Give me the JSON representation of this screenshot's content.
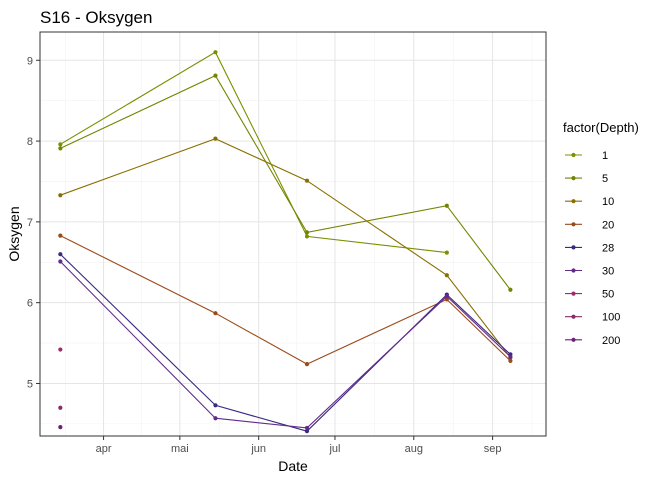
{
  "chart_data": {
    "type": "line",
    "title": "S16  -  Oksygen",
    "xlabel": "Date",
    "ylabel": "Oksygen",
    "x_tick_labels": [
      "apr",
      "mai",
      "jun",
      "jul",
      "aug",
      "sep"
    ],
    "x_ticks": [
      "2023-04-01",
      "2023-05-01",
      "2023-06-01",
      "2023-07-01",
      "2023-08-01",
      "2023-09-01"
    ],
    "xlim": [
      "2023-03-07",
      "2023-09-22"
    ],
    "y_ticks": [
      5,
      6,
      7,
      8,
      9
    ],
    "ylim": [
      4.35,
      9.35
    ],
    "grid": true,
    "legend": {
      "title": "factor(Depth)",
      "position": "right"
    },
    "series": [
      {
        "name": "1",
        "color": "#7a9000",
        "points": [
          [
            "2023-03-15",
            7.96
          ],
          [
            "2023-05-15",
            9.1
          ],
          [
            "2023-06-20",
            6.82
          ],
          [
            "2023-08-14",
            6.62
          ]
        ]
      },
      {
        "name": "5",
        "color": "#758400",
        "points": [
          [
            "2023-03-15",
            7.91
          ],
          [
            "2023-05-15",
            8.81
          ],
          [
            "2023-06-20",
            6.87
          ],
          [
            "2023-08-14",
            7.2
          ],
          [
            "2023-09-08",
            6.16
          ]
        ]
      },
      {
        "name": "10",
        "color": "#8a6f00",
        "points": [
          [
            "2023-03-15",
            7.33
          ],
          [
            "2023-05-15",
            8.03
          ],
          [
            "2023-06-20",
            7.51
          ],
          [
            "2023-08-14",
            6.34
          ],
          [
            "2023-09-08",
            5.32
          ]
        ]
      },
      {
        "name": "20",
        "color": "#9c4a1a",
        "points": [
          [
            "2023-03-15",
            6.83
          ],
          [
            "2023-05-15",
            5.87
          ],
          [
            "2023-06-20",
            5.24
          ],
          [
            "2023-08-14",
            6.04
          ],
          [
            "2023-09-08",
            5.28
          ]
        ]
      },
      {
        "name": "28",
        "color": "#3a2a80",
        "points": [
          [
            "2023-03-15",
            6.6
          ],
          [
            "2023-05-15",
            4.73
          ],
          [
            "2023-06-20",
            4.41
          ],
          [
            "2023-08-14",
            6.1
          ],
          [
            "2023-09-08",
            5.36
          ]
        ]
      },
      {
        "name": "30",
        "color": "#642a8a",
        "points": [
          [
            "2023-03-15",
            6.51
          ],
          [
            "2023-05-15",
            4.57
          ],
          [
            "2023-06-20",
            4.45
          ],
          [
            "2023-08-14",
            6.08
          ],
          [
            "2023-09-08",
            5.33
          ]
        ]
      },
      {
        "name": "50",
        "color": "#9a2e6a",
        "points": [
          [
            "2023-03-15",
            5.42
          ]
        ]
      },
      {
        "name": "100",
        "color": "#8a2a6e",
        "points": [
          [
            "2023-03-15",
            4.7
          ]
        ]
      },
      {
        "name": "200",
        "color": "#6b1f7a",
        "points": [
          [
            "2023-03-15",
            4.46
          ]
        ]
      }
    ]
  }
}
